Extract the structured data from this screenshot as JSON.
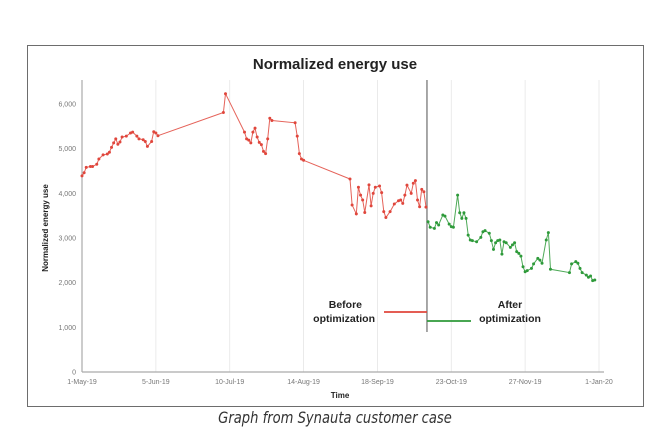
{
  "caption": "Graph from Synauta customer case",
  "chart_data": {
    "type": "line",
    "title": "Normalized energy use",
    "xlabel": "Time",
    "ylabel": "Normalized energy use",
    "ylim": [
      0,
      6000
    ],
    "xlim": [
      "2019-05-01",
      "2020-01-01"
    ],
    "yticks": [
      0,
      1000,
      2000,
      3000,
      4000,
      5000,
      6000
    ],
    "ytick_labels": [
      "0",
      "1,000",
      "2,000",
      "3,000",
      "4,000",
      "5,000",
      "6,000"
    ],
    "xticks": [
      "2019-05-01",
      "2019-06-05",
      "2019-07-10",
      "2019-08-14",
      "2019-09-18",
      "2019-10-23",
      "2019-11-27",
      "2020-01-01"
    ],
    "xtick_labels": [
      "1-May-19",
      "5-Jun-19",
      "10-Jul-19",
      "14-Aug-19",
      "18-Sep-19",
      "23-Oct-19",
      "27-Nov-19",
      "1-Jan-20"
    ],
    "grid": "vertical",
    "divider_date": "2019-10-11",
    "colors": {
      "before": "#e0463c",
      "after": "#2e9a3a",
      "divider": "#8a8a8a"
    },
    "series": [
      {
        "name": "Before optimization",
        "legend_lines": [
          "Before",
          "optimization"
        ],
        "points": [
          [
            "2019-05-01",
            4390
          ],
          [
            "2019-05-02",
            4460
          ],
          [
            "2019-05-03",
            4580
          ],
          [
            "2019-05-05",
            4600
          ],
          [
            "2019-05-06",
            4600
          ],
          [
            "2019-05-08",
            4650
          ],
          [
            "2019-05-09",
            4770
          ],
          [
            "2019-05-11",
            4860
          ],
          [
            "2019-05-13",
            4880
          ],
          [
            "2019-05-14",
            4920
          ],
          [
            "2019-05-15",
            5030
          ],
          [
            "2019-05-16",
            5130
          ],
          [
            "2019-05-17",
            5220
          ],
          [
            "2019-05-18",
            5100
          ],
          [
            "2019-05-19",
            5150
          ],
          [
            "2019-05-20",
            5260
          ],
          [
            "2019-05-22",
            5280
          ],
          [
            "2019-05-24",
            5350
          ],
          [
            "2019-05-25",
            5370
          ],
          [
            "2019-05-27",
            5280
          ],
          [
            "2019-05-28",
            5220
          ],
          [
            "2019-05-30",
            5200
          ],
          [
            "2019-05-31",
            5160
          ],
          [
            "2019-06-01",
            5050
          ],
          [
            "2019-06-03",
            5160
          ],
          [
            "2019-06-04",
            5380
          ],
          [
            "2019-06-05",
            5350
          ],
          [
            "2019-06-06",
            5290
          ],
          [
            "2019-07-07",
            5810
          ],
          [
            "2019-07-08",
            6230
          ],
          [
            "2019-07-17",
            5370
          ],
          [
            "2019-07-18",
            5220
          ],
          [
            "2019-07-19",
            5190
          ],
          [
            "2019-07-20",
            5130
          ],
          [
            "2019-07-21",
            5370
          ],
          [
            "2019-07-22",
            5460
          ],
          [
            "2019-07-23",
            5260
          ],
          [
            "2019-07-24",
            5140
          ],
          [
            "2019-07-25",
            5090
          ],
          [
            "2019-07-26",
            4940
          ],
          [
            "2019-07-27",
            4890
          ],
          [
            "2019-07-28",
            5220
          ],
          [
            "2019-07-29",
            5680
          ],
          [
            "2019-07-30",
            5630
          ],
          [
            "2019-08-10",
            5580
          ],
          [
            "2019-08-11",
            5280
          ],
          [
            "2019-08-12",
            4890
          ],
          [
            "2019-08-13",
            4770
          ],
          [
            "2019-08-14",
            4740
          ],
          [
            "2019-09-05",
            4320
          ],
          [
            "2019-09-06",
            3740
          ],
          [
            "2019-09-08",
            3540
          ],
          [
            "2019-09-09",
            4135
          ],
          [
            "2019-09-10",
            3960
          ],
          [
            "2019-09-11",
            3850
          ],
          [
            "2019-09-12",
            3570
          ],
          [
            "2019-09-14",
            4190
          ],
          [
            "2019-09-15",
            3720
          ],
          [
            "2019-09-16",
            4000
          ],
          [
            "2019-09-17",
            4135
          ],
          [
            "2019-09-19",
            4165
          ],
          [
            "2019-09-20",
            4015
          ],
          [
            "2019-09-21",
            3590
          ],
          [
            "2019-09-22",
            3460
          ],
          [
            "2019-09-24",
            3590
          ],
          [
            "2019-09-26",
            3760
          ],
          [
            "2019-09-28",
            3835
          ],
          [
            "2019-09-29",
            3850
          ],
          [
            "2019-09-30",
            3775
          ],
          [
            "2019-10-01",
            3960
          ],
          [
            "2019-10-02",
            4185
          ],
          [
            "2019-10-04",
            4000
          ],
          [
            "2019-10-05",
            4225
          ],
          [
            "2019-10-06",
            4285
          ],
          [
            "2019-10-07",
            3850
          ],
          [
            "2019-10-08",
            3700
          ],
          [
            "2019-10-09",
            4090
          ],
          [
            "2019-10-10",
            4035
          ],
          [
            "2019-10-11",
            3690
          ]
        ]
      },
      {
        "name": "After optimization",
        "legend_lines": [
          "After",
          "optimization"
        ],
        "points": [
          [
            "2019-10-12",
            3365
          ],
          [
            "2019-10-13",
            3240
          ],
          [
            "2019-10-15",
            3215
          ],
          [
            "2019-10-16",
            3345
          ],
          [
            "2019-10-17",
            3290
          ],
          [
            "2019-10-19",
            3515
          ],
          [
            "2019-10-20",
            3490
          ],
          [
            "2019-10-22",
            3310
          ],
          [
            "2019-10-23",
            3255
          ],
          [
            "2019-10-24",
            3240
          ],
          [
            "2019-10-26",
            3960
          ],
          [
            "2019-10-27",
            3565
          ],
          [
            "2019-10-28",
            3440
          ],
          [
            "2019-10-29",
            3565
          ],
          [
            "2019-10-30",
            3440
          ],
          [
            "2019-10-31",
            3065
          ],
          [
            "2019-11-01",
            2955
          ],
          [
            "2019-11-02",
            2940
          ],
          [
            "2019-11-04",
            2915
          ],
          [
            "2019-11-06",
            3015
          ],
          [
            "2019-11-07",
            3140
          ],
          [
            "2019-11-08",
            3165
          ],
          [
            "2019-11-10",
            3105
          ],
          [
            "2019-11-11",
            2940
          ],
          [
            "2019-11-12",
            2745
          ],
          [
            "2019-11-13",
            2895
          ],
          [
            "2019-11-14",
            2940
          ],
          [
            "2019-11-15",
            2955
          ],
          [
            "2019-11-16",
            2640
          ],
          [
            "2019-11-17",
            2915
          ],
          [
            "2019-11-18",
            2895
          ],
          [
            "2019-11-20",
            2790
          ],
          [
            "2019-11-21",
            2845
          ],
          [
            "2019-11-22",
            2895
          ],
          [
            "2019-11-23",
            2695
          ],
          [
            "2019-11-24",
            2655
          ],
          [
            "2019-11-25",
            2595
          ],
          [
            "2019-11-26",
            2355
          ],
          [
            "2019-11-27",
            2245
          ],
          [
            "2019-11-28",
            2270
          ],
          [
            "2019-11-30",
            2320
          ],
          [
            "2019-12-01",
            2420
          ],
          [
            "2019-12-03",
            2545
          ],
          [
            "2019-12-04",
            2505
          ],
          [
            "2019-12-05",
            2435
          ],
          [
            "2019-12-07",
            2955
          ],
          [
            "2019-12-08",
            3120
          ],
          [
            "2019-12-09",
            2300
          ],
          [
            "2019-12-18",
            2225
          ],
          [
            "2019-12-19",
            2420
          ],
          [
            "2019-12-21",
            2470
          ],
          [
            "2019-12-22",
            2435
          ],
          [
            "2019-12-23",
            2320
          ],
          [
            "2019-12-24",
            2225
          ],
          [
            "2019-12-26",
            2170
          ],
          [
            "2019-12-27",
            2120
          ],
          [
            "2019-12-28",
            2150
          ],
          [
            "2019-12-29",
            2045
          ],
          [
            "2019-12-30",
            2060
          ]
        ]
      }
    ]
  }
}
